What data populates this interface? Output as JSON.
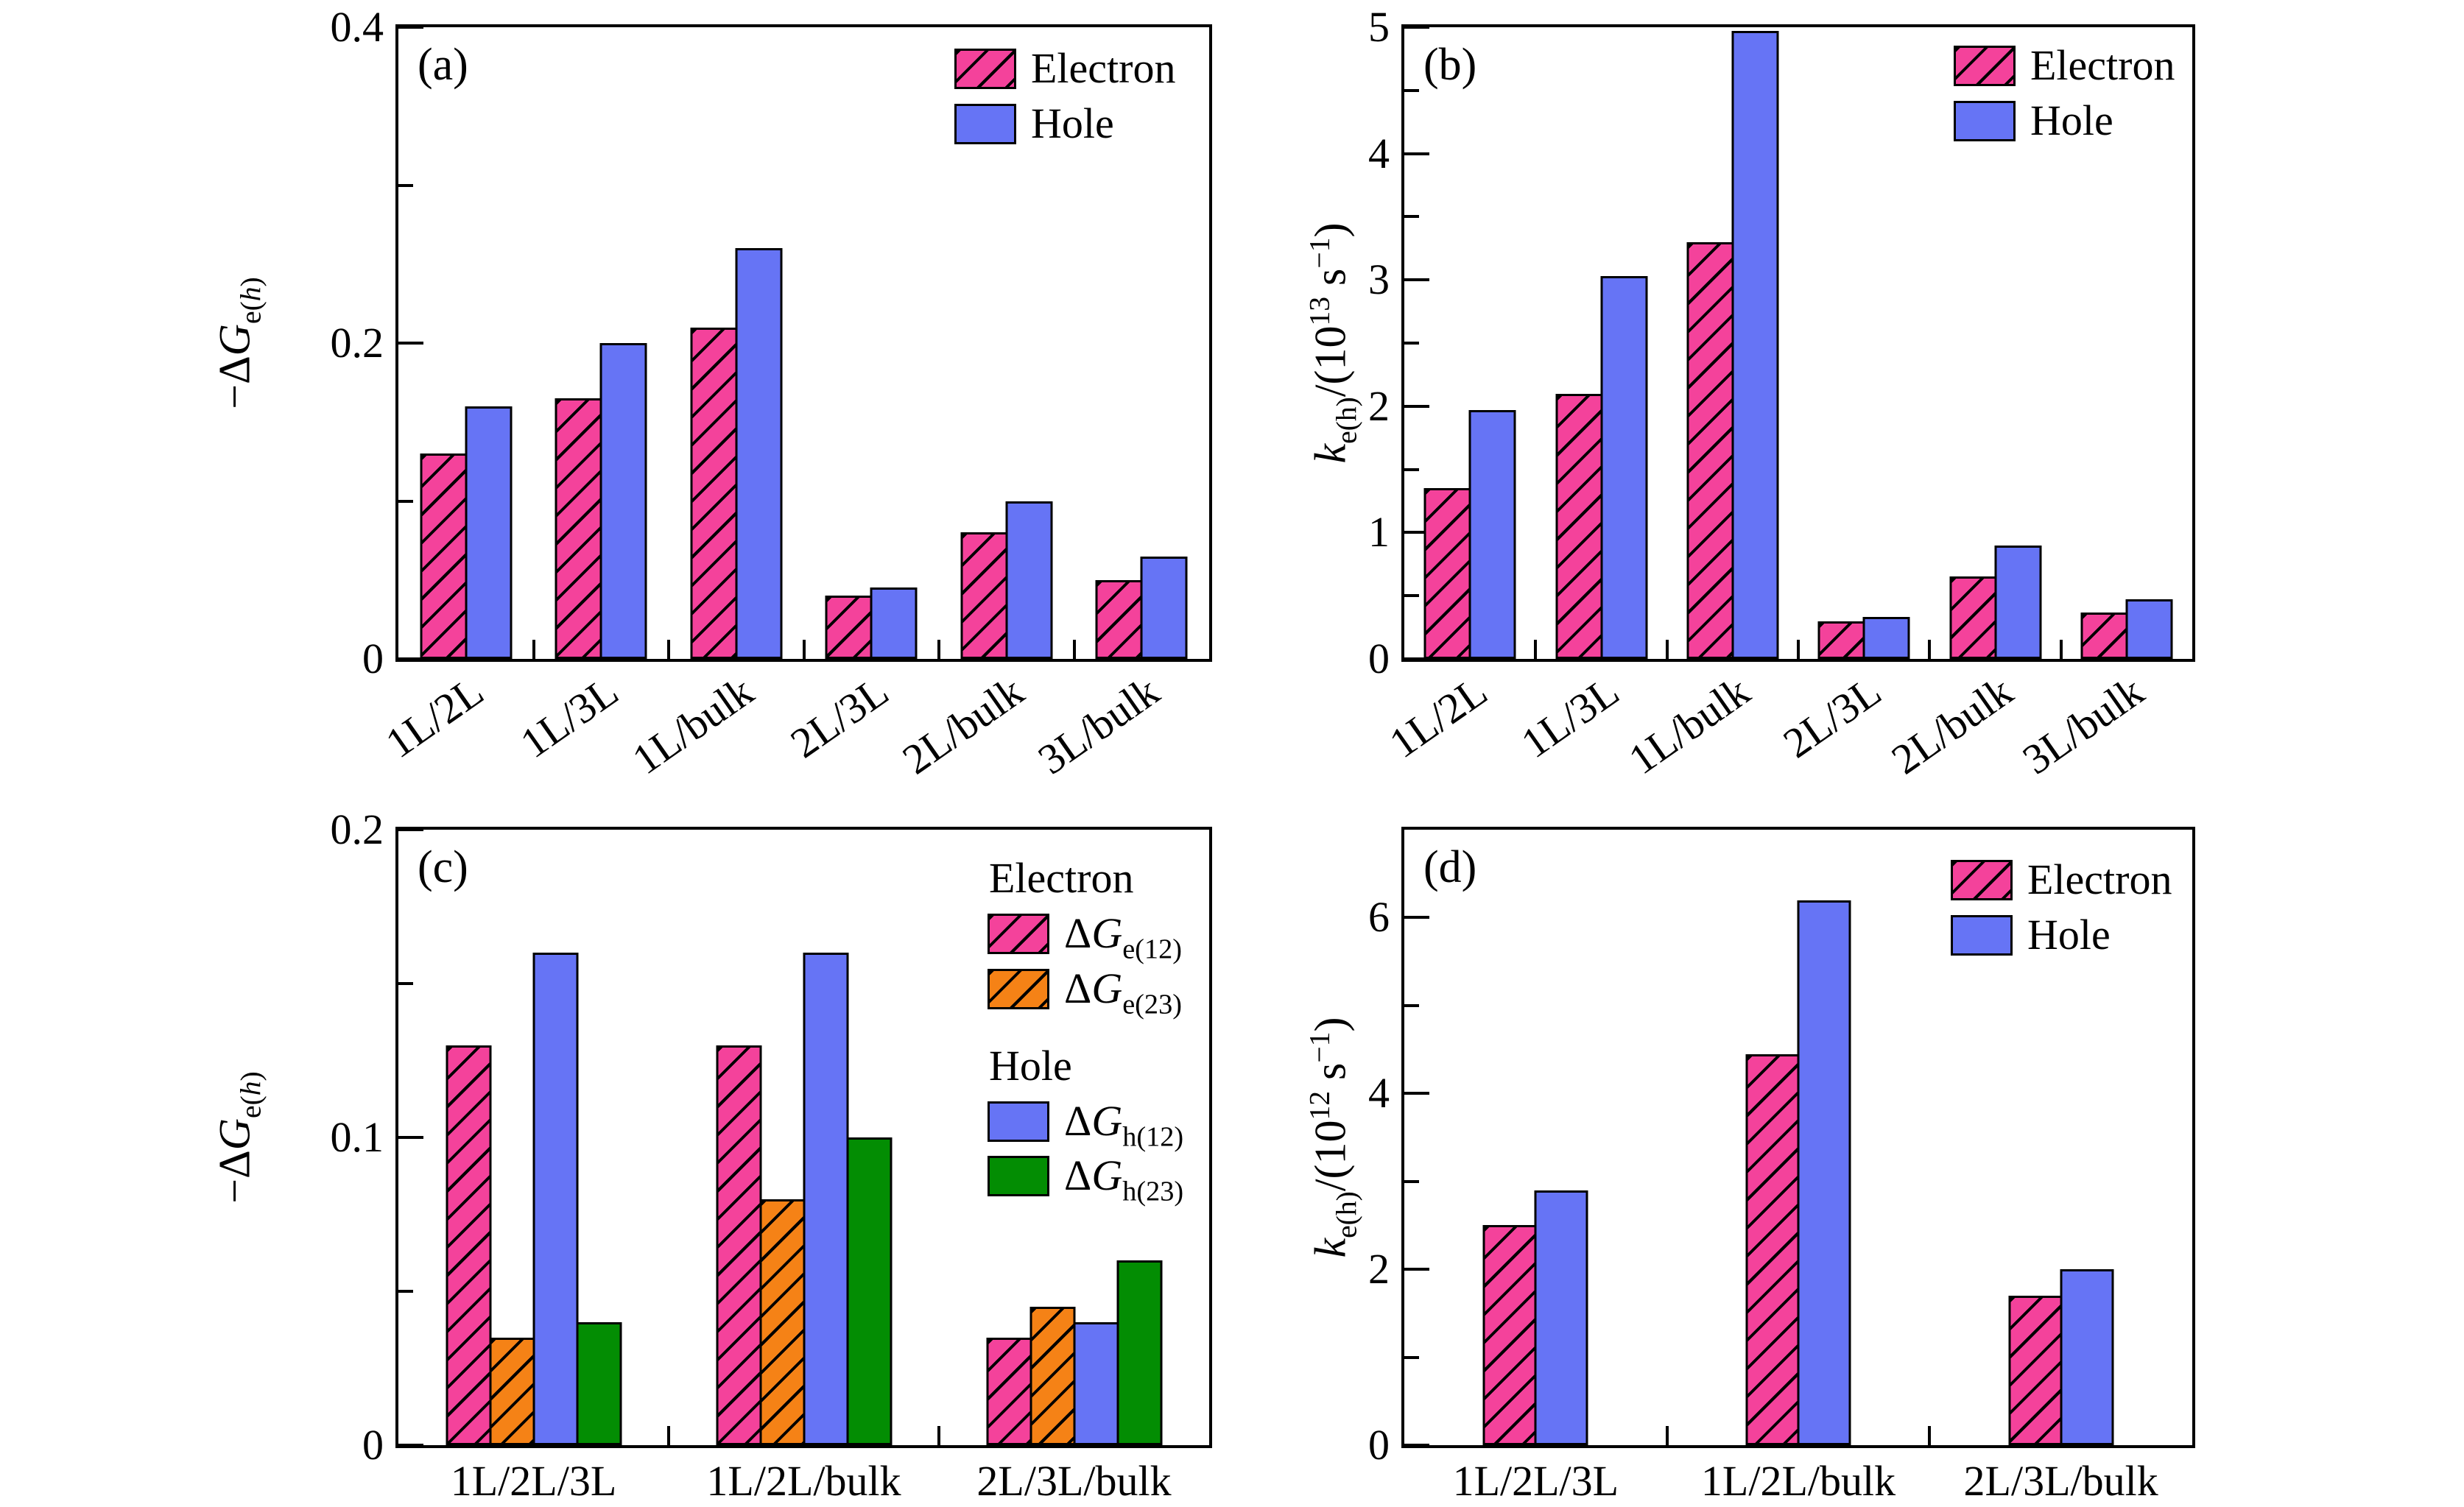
{
  "palette": {
    "pink": "#f4429b",
    "orange": "#f58216",
    "blue": "#6674f5",
    "green": "#038d03",
    "axis": "#000000",
    "background": "#ffffff"
  },
  "chart_data": [
    {
      "id": "a",
      "tag": "(a)",
      "type": "bar",
      "ylabel": "-ΔG_e(h)",
      "ylabel_segments": [
        {
          "t": "−Δ"
        },
        {
          "t": "G",
          "i": true
        },
        {
          "t": "e(",
          "sub": true
        },
        {
          "t": "h",
          "sub": true,
          "i": true
        },
        {
          "t": ")",
          "sub": true
        }
      ],
      "xlabel": "",
      "ylim": [
        0,
        0.4
      ],
      "grid": false,
      "legend_position": "upper right",
      "yticks": [
        {
          "v": 0,
          "label": "0"
        },
        {
          "v": 0.1
        },
        {
          "v": 0.2,
          "label": "0.2"
        },
        {
          "v": 0.3
        },
        {
          "v": 0.4,
          "label": "0.4"
        }
      ],
      "categories": [
        "1L/2L",
        "1L/3L",
        "1L/bulk",
        "2L/3L",
        "2L/bulk",
        "3L/bulk"
      ],
      "rotate_categories": true,
      "series": [
        {
          "name": "Electron",
          "style": "pink-hatch",
          "values": [
            0.13,
            0.165,
            0.21,
            0.04,
            0.08,
            0.05
          ]
        },
        {
          "name": "Hole",
          "style": "blue",
          "values": [
            0.16,
            0.2,
            0.26,
            0.045,
            0.1,
            0.065
          ]
        }
      ],
      "legend": [
        {
          "swatch": "pink-hatch",
          "segments": [
            {
              "t": "Electron"
            }
          ]
        },
        {
          "swatch": "blue",
          "segments": [
            {
              "t": "Hole"
            }
          ]
        }
      ]
    },
    {
      "id": "b",
      "tag": "(b)",
      "type": "bar",
      "ylabel": "k_e(h)/(10^13 s^-1)",
      "ylabel_segments": [
        {
          "t": "k",
          "i": true
        },
        {
          "t": "e(h)",
          "sub": true
        },
        {
          "t": "/(10"
        },
        {
          "t": "13",
          "sup": true
        },
        {
          "t": " s"
        },
        {
          "t": "−1",
          "sup": true
        },
        {
          "t": ")"
        }
      ],
      "xlabel": "",
      "ylim": [
        0,
        5
      ],
      "grid": false,
      "legend_position": "upper right",
      "yticks": [
        {
          "v": 0,
          "label": "0"
        },
        {
          "v": 0.5
        },
        {
          "v": 1,
          "label": "1"
        },
        {
          "v": 1.5
        },
        {
          "v": 2,
          "label": "2"
        },
        {
          "v": 2.5
        },
        {
          "v": 3,
          "label": "3"
        },
        {
          "v": 3.5
        },
        {
          "v": 4,
          "label": "4"
        },
        {
          "v": 4.5
        },
        {
          "v": 5,
          "label": "5"
        }
      ],
      "categories": [
        "1L/2L",
        "1L/3L",
        "1L/bulk",
        "2L/3L",
        "2L/bulk",
        "3L/bulk"
      ],
      "rotate_categories": true,
      "series": [
        {
          "name": "Electron",
          "style": "pink-hatch",
          "values": [
            1.35,
            2.1,
            3.3,
            0.3,
            0.65,
            0.37
          ]
        },
        {
          "name": "Hole",
          "style": "blue",
          "values": [
            1.97,
            3.03,
            4.97,
            0.33,
            0.9,
            0.47
          ]
        }
      ],
      "legend": [
        {
          "swatch": "pink-hatch",
          "segments": [
            {
              "t": "Electron"
            }
          ]
        },
        {
          "swatch": "blue",
          "segments": [
            {
              "t": "Hole"
            }
          ]
        }
      ]
    },
    {
      "id": "c",
      "tag": "(c)",
      "type": "bar",
      "ylabel": "-ΔG_e(h)",
      "ylabel_segments": [
        {
          "t": "−Δ"
        },
        {
          "t": "G",
          "i": true
        },
        {
          "t": "e(",
          "sub": true
        },
        {
          "t": "h",
          "sub": true,
          "i": true
        },
        {
          "t": ")",
          "sub": true
        }
      ],
      "xlabel": "",
      "ylim": [
        0,
        0.2
      ],
      "grid": false,
      "legend_position": "upper right",
      "yticks": [
        {
          "v": 0,
          "label": "0"
        },
        {
          "v": 0.05
        },
        {
          "v": 0.1,
          "label": "0.1"
        },
        {
          "v": 0.15
        },
        {
          "v": 0.2,
          "label": "0.2"
        }
      ],
      "categories": [
        "1L/2L/3L",
        "1L/2L/bulk",
        "2L/3L/bulk"
      ],
      "rotate_categories": false,
      "series": [
        {
          "name": "ΔG_e(12)",
          "style": "pink-hatch",
          "values": [
            0.13,
            0.13,
            0.035
          ]
        },
        {
          "name": "ΔG_e(23)",
          "style": "orange-hatch",
          "values": [
            0.035,
            0.08,
            0.045
          ]
        },
        {
          "name": "ΔG_h(12)",
          "style": "blue",
          "values": [
            0.16,
            0.16,
            0.04
          ]
        },
        {
          "name": "ΔG_h(23)",
          "style": "green",
          "values": [
            0.04,
            0.1,
            0.06
          ]
        }
      ],
      "legend": [
        {
          "header": true,
          "segments": [
            {
              "t": "Electron"
            }
          ]
        },
        {
          "swatch": "pink-hatch",
          "segments": [
            {
              "t": "Δ"
            },
            {
              "t": "G",
              "i": true
            },
            {
              "t": "e(12)",
              "sub": true
            }
          ]
        },
        {
          "swatch": "orange-hatch",
          "segments": [
            {
              "t": "Δ"
            },
            {
              "t": "G",
              "i": true
            },
            {
              "t": "e(23)",
              "sub": true
            }
          ]
        },
        {
          "header": true,
          "spaced": true,
          "segments": [
            {
              "t": "Hole"
            }
          ]
        },
        {
          "swatch": "blue",
          "segments": [
            {
              "t": "Δ"
            },
            {
              "t": "G",
              "i": true
            },
            {
              "t": "h(12)",
              "sub": true
            }
          ]
        },
        {
          "swatch": "green",
          "segments": [
            {
              "t": "Δ"
            },
            {
              "t": "G",
              "i": true
            },
            {
              "t": "h(23)",
              "sub": true
            }
          ]
        }
      ]
    },
    {
      "id": "d",
      "tag": "(d)",
      "type": "bar",
      "ylabel": "k_e(h)/(10^12 s^-1)",
      "ylabel_segments": [
        {
          "t": "k",
          "i": true
        },
        {
          "t": "e(h)",
          "sub": true
        },
        {
          "t": "/(10"
        },
        {
          "t": "12",
          "sup": true
        },
        {
          "t": " s"
        },
        {
          "t": "−1",
          "sup": true
        },
        {
          "t": ")"
        }
      ],
      "xlabel": "",
      "ylim": [
        0,
        7
      ],
      "grid": false,
      "legend_position": "upper right",
      "yticks": [
        {
          "v": 0,
          "label": "0"
        },
        {
          "v": 1
        },
        {
          "v": 2,
          "label": "2"
        },
        {
          "v": 3
        },
        {
          "v": 4,
          "label": "4"
        },
        {
          "v": 5
        },
        {
          "v": 6,
          "label": "6"
        }
      ],
      "categories": [
        "1L/2L/3L",
        "1L/2L/bulk",
        "2L/3L/bulk"
      ],
      "rotate_categories": false,
      "series": [
        {
          "name": "Electron",
          "style": "pink-hatch",
          "values": [
            2.5,
            4.45,
            1.7
          ]
        },
        {
          "name": "Hole",
          "style": "blue",
          "values": [
            2.9,
            6.2,
            2.0
          ]
        }
      ],
      "legend": [
        {
          "swatch": "pink-hatch",
          "segments": [
            {
              "t": "Electron"
            }
          ]
        },
        {
          "swatch": "blue",
          "segments": [
            {
              "t": "Hole"
            }
          ]
        }
      ]
    }
  ]
}
